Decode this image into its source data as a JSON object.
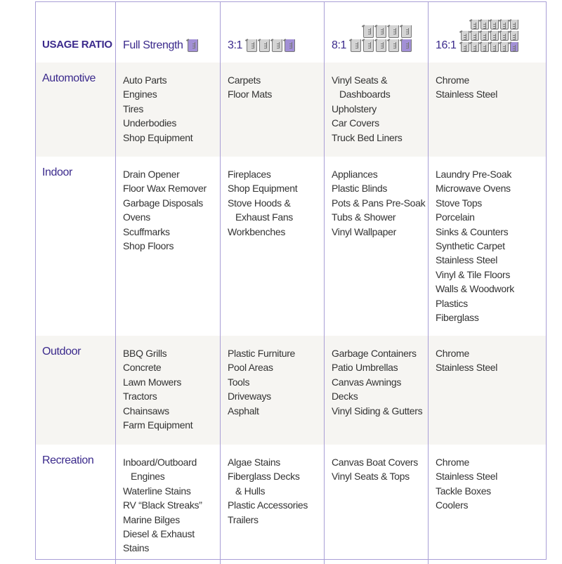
{
  "header": {
    "usage_label": "USAGE RATIO",
    "columns": [
      {
        "label": "Full Strength",
        "beaker_rows": [
          1
        ],
        "filled": 1
      },
      {
        "label": "3:1",
        "beaker_rows": [
          4
        ],
        "filled": 1
      },
      {
        "label": "8:1",
        "beaker_rows": [
          4,
          5
        ],
        "filled": 1
      },
      {
        "label": "16:1",
        "beaker_rows": [
          5,
          6,
          6
        ],
        "filled": 1
      }
    ]
  },
  "colors": {
    "accent": "#3b2a8c",
    "border": "#a99fd6",
    "shade": "#f6f5f2",
    "beaker_fill": "#a290d6",
    "beaker_empty": "#d4d4d4"
  },
  "rows": [
    {
      "label": "Automotive",
      "shade": true,
      "cells": [
        [
          {
            "t": "Auto Parts"
          },
          {
            "t": "Engines"
          },
          {
            "t": "Tires"
          },
          {
            "t": "Underbodies"
          },
          {
            "t": "Shop Equipment"
          }
        ],
        [
          {
            "t": "Carpets"
          },
          {
            "t": "Floor Mats"
          }
        ],
        [
          {
            "t": "Vinyl Seats &"
          },
          {
            "t": "Dashboards",
            "indent": true
          },
          {
            "t": "Upholstery"
          },
          {
            "t": "Car Covers"
          },
          {
            "t": "Truck Bed Liners"
          }
        ],
        [
          {
            "t": "Chrome"
          },
          {
            "t": "Stainless Steel"
          }
        ]
      ]
    },
    {
      "label": "Indoor",
      "shade": false,
      "cells": [
        [
          {
            "t": "Drain Opener"
          },
          {
            "t": "Floor Wax Remover"
          },
          {
            "t": "Garbage Disposals"
          },
          {
            "t": "Ovens"
          },
          {
            "t": "Scuffmarks"
          },
          {
            "t": "Shop Floors"
          }
        ],
        [
          {
            "t": "Fireplaces"
          },
          {
            "t": "Shop Equipment"
          },
          {
            "t": "Stove Hoods &"
          },
          {
            "t": "Exhaust Fans",
            "indent": true
          },
          {
            "t": "Workbenches"
          }
        ],
        [
          {
            "t": "Appliances"
          },
          {
            "t": "Plastic Blinds"
          },
          {
            "t": "Pots & Pans Pre-Soak"
          },
          {
            "t": "Tubs & Shower"
          },
          {
            "t": "Vinyl Wallpaper"
          }
        ],
        [
          {
            "t": "Laundry Pre-Soak"
          },
          {
            "t": "Microwave Ovens"
          },
          {
            "t": "Stove Tops"
          },
          {
            "t": "Porcelain"
          },
          {
            "t": "Sinks & Counters"
          },
          {
            "t": "Synthetic Carpet"
          },
          {
            "t": "Stainless Steel"
          },
          {
            "t": "Vinyl & Tile Floors"
          },
          {
            "t": "Walls & Woodwork"
          },
          {
            "t": "Plastics"
          },
          {
            "t": "Fiberglass"
          }
        ]
      ]
    },
    {
      "label": "Outdoor",
      "shade": true,
      "cells": [
        [
          {
            "t": "BBQ Grills"
          },
          {
            "t": "Concrete"
          },
          {
            "t": "Lawn Mowers"
          },
          {
            "t": "Tractors"
          },
          {
            "t": "Chainsaws"
          },
          {
            "t": "Farm Equipment"
          }
        ],
        [
          {
            "t": "Plastic Furniture"
          },
          {
            "t": "Pool Areas"
          },
          {
            "t": "Tools"
          },
          {
            "t": "Driveways"
          },
          {
            "t": "Asphalt"
          }
        ],
        [
          {
            "t": "Garbage Containers"
          },
          {
            "t": "Patio Umbrellas"
          },
          {
            "t": "Canvas Awnings"
          },
          {
            "t": "Decks"
          },
          {
            "t": "Vinyl Siding & Gutters"
          }
        ],
        [
          {
            "t": "Chrome"
          },
          {
            "t": "Stainless Steel"
          }
        ]
      ]
    },
    {
      "label": "Recreation",
      "shade": false,
      "cells": [
        [
          {
            "t": "Inboard/Outboard"
          },
          {
            "t": "Engines",
            "indent": true
          },
          {
            "t": "Waterline Stains"
          },
          {
            "t": "RV “Black Streaks”"
          },
          {
            "t": "Marine Bilges"
          },
          {
            "t": "Diesel & Exhaust Stains"
          }
        ],
        [
          {
            "t": "Algae Stains"
          },
          {
            "t": "Fiberglass Decks"
          },
          {
            "t": "& Hulls",
            "indent": true
          },
          {
            "t": "Plastic Accessories"
          },
          {
            "t": "Trailers"
          }
        ],
        [
          {
            "t": "Canvas Boat Covers"
          },
          {
            "t": "Vinyl Seats & Tops"
          }
        ],
        [
          {
            "t": "Chrome"
          },
          {
            "t": "Stainless Steel"
          },
          {
            "t": "Tackle Boxes"
          },
          {
            "t": "Coolers"
          }
        ]
      ]
    }
  ]
}
